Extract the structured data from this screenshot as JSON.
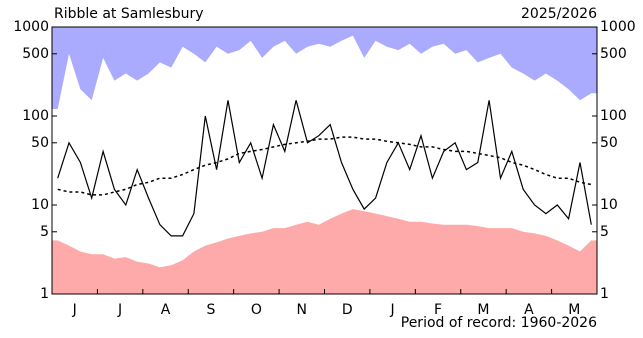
{
  "chart_data": {
    "type": "line",
    "title": "Ribble at Samlesbury",
    "subtitle": "2025/2026",
    "annotation": "Period of record: 1960-2026",
    "log_scale": true,
    "ylim": [
      1,
      1000
    ],
    "yticks": [
      1,
      5,
      10,
      50,
      100,
      500,
      1000
    ],
    "background": "#ffffff",
    "categories": [
      null,
      null,
      "J",
      null,
      null,
      null,
      "J",
      null,
      null,
      null,
      "A",
      null,
      null,
      null,
      "S",
      null,
      null,
      null,
      "O",
      null,
      null,
      null,
      "N",
      null,
      null,
      null,
      "D",
      null,
      null,
      null,
      "J",
      null,
      null,
      null,
      "F",
      null,
      null,
      null,
      "M",
      null,
      null,
      null,
      "A",
      null,
      null,
      null,
      "M",
      null
    ],
    "series": [
      {
        "color": "#aaaaff",
        "fill": "above",
        "values": [
          120,
          500,
          200,
          150,
          450,
          250,
          300,
          250,
          300,
          400,
          350,
          600,
          500,
          400,
          600,
          500,
          550,
          700,
          450,
          600,
          700,
          500,
          600,
          650,
          600,
          700,
          800,
          450,
          700,
          600,
          550,
          650,
          500,
          600,
          650,
          500,
          550,
          400,
          450,
          500,
          350,
          300,
          250,
          300,
          250,
          200,
          150,
          180
        ]
      },
      {
        "color": "#ffaaaa",
        "fill": "below",
        "values": [
          4,
          3.5,
          3,
          2.8,
          2.8,
          2.5,
          2.6,
          2.3,
          2.2,
          2.0,
          2.1,
          2.4,
          3,
          3.5,
          3.8,
          4.2,
          4.5,
          4.8,
          5,
          5.5,
          5.5,
          6,
          6.5,
          6,
          7,
          8,
          9,
          8.5,
          8,
          7.5,
          7,
          6.5,
          6.5,
          6.2,
          6,
          6,
          6,
          5.8,
          5.5,
          5.5,
          5.5,
          5,
          4.8,
          4.5,
          4,
          3.5,
          3,
          4
        ]
      },
      {
        "color": "#000000",
        "dash": true,
        "values": [
          15,
          14,
          14,
          13,
          13,
          14,
          15,
          17,
          18,
          20,
          20,
          22,
          25,
          28,
          30,
          33,
          38,
          40,
          42,
          45,
          48,
          50,
          52,
          55,
          55,
          58,
          58,
          55,
          55,
          52,
          50,
          48,
          45,
          45,
          42,
          40,
          40,
          38,
          36,
          34,
          30,
          28,
          25,
          22,
          20,
          20,
          18,
          17
        ]
      },
      {
        "color": "#000000",
        "values": [
          20,
          50,
          30,
          12,
          40,
          15,
          10,
          25,
          12,
          6,
          4.5,
          4.5,
          8,
          100,
          25,
          150,
          30,
          50,
          20,
          80,
          40,
          150,
          50,
          60,
          80,
          30,
          15,
          9,
          12,
          30,
          50,
          25,
          60,
          20,
          40,
          50,
          25,
          30,
          150,
          20,
          40,
          15,
          10,
          8,
          10,
          7,
          30,
          6
        ]
      }
    ]
  }
}
